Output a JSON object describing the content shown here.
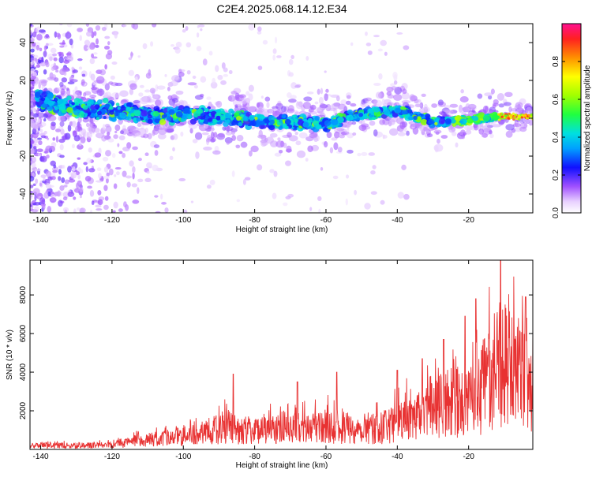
{
  "title": "C2E4.2025.068.14.12.E34",
  "chart_data": [
    {
      "type": "heatmap",
      "xlabel": "Height of straight line (km)",
      "ylabel": "Frequency (Hz)",
      "xlim": [
        -143,
        -2
      ],
      "ylim": [
        -50,
        50
      ],
      "xticks": [
        -140,
        -120,
        -100,
        -80,
        -60,
        -40,
        -20
      ],
      "yticks": [
        -40,
        -20,
        0,
        20,
        40
      ],
      "colorbar": {
        "label": "Normalized spectral amplitude",
        "range": [
          0,
          1
        ],
        "ticks": [
          0.0,
          0.2,
          0.4,
          0.6,
          0.8
        ]
      },
      "ridge_centerline": [
        {
          "x": -142,
          "y": 10
        },
        {
          "x": -130,
          "y": 5
        },
        {
          "x": -120,
          "y": 4
        },
        {
          "x": -110,
          "y": 2
        },
        {
          "x": -100,
          "y": 2
        },
        {
          "x": -90,
          "y": 1
        },
        {
          "x": -80,
          "y": -1
        },
        {
          "x": -70,
          "y": -2
        },
        {
          "x": -60,
          "y": -3
        },
        {
          "x": -50,
          "y": 2
        },
        {
          "x": -40,
          "y": 4
        },
        {
          "x": -30,
          "y": -2
        },
        {
          "x": -20,
          "y": -1
        },
        {
          "x": -10,
          "y": 1
        },
        {
          "x": -2,
          "y": 1
        }
      ],
      "colors": {
        "low": "#c9a8f5",
        "mid": "#1a1aff",
        "high": "#ff1a3a"
      }
    },
    {
      "type": "line",
      "xlabel": "Height of straight line (km)",
      "ylabel": "SNR (10 * v/v)",
      "xlim": [
        -143,
        -2
      ],
      "ylim": [
        0,
        9800
      ],
      "xticks": [
        -140,
        -120,
        -100,
        -80,
        -60,
        -40,
        -20
      ],
      "yticks": [
        2000,
        4000,
        6000,
        8000
      ],
      "envelope": [
        {
          "x": -143,
          "y": 200
        },
        {
          "x": -140,
          "y": 350
        },
        {
          "x": -130,
          "y": 300
        },
        {
          "x": -120,
          "y": 400
        },
        {
          "x": -113,
          "y": 700
        },
        {
          "x": -105,
          "y": 900
        },
        {
          "x": -95,
          "y": 1300
        },
        {
          "x": -88,
          "y": 1900
        },
        {
          "x": -80,
          "y": 1500
        },
        {
          "x": -70,
          "y": 1700
        },
        {
          "x": -60,
          "y": 1900
        },
        {
          "x": -50,
          "y": 1600
        },
        {
          "x": -42,
          "y": 1900
        },
        {
          "x": -38,
          "y": 2800
        },
        {
          "x": -30,
          "y": 3300
        },
        {
          "x": -25,
          "y": 4000
        },
        {
          "x": -20,
          "y": 3800
        },
        {
          "x": -15,
          "y": 5500
        },
        {
          "x": -11,
          "y": 7500
        },
        {
          "x": -8,
          "y": 6200
        },
        {
          "x": -5,
          "y": 6500
        },
        {
          "x": -2,
          "y": 5800
        }
      ],
      "peaks": [
        {
          "x": -86,
          "y": 3900
        },
        {
          "x": -68,
          "y": 3500
        },
        {
          "x": -57,
          "y": 4000
        },
        {
          "x": -40,
          "y": 4100
        },
        {
          "x": -33,
          "y": 4700
        },
        {
          "x": -27,
          "y": 5700
        },
        {
          "x": -21,
          "y": 6900
        },
        {
          "x": -18,
          "y": 7800
        },
        {
          "x": -11,
          "y": 9800
        },
        {
          "x": -4,
          "y": 7900
        }
      ],
      "color": "#e83232"
    }
  ]
}
